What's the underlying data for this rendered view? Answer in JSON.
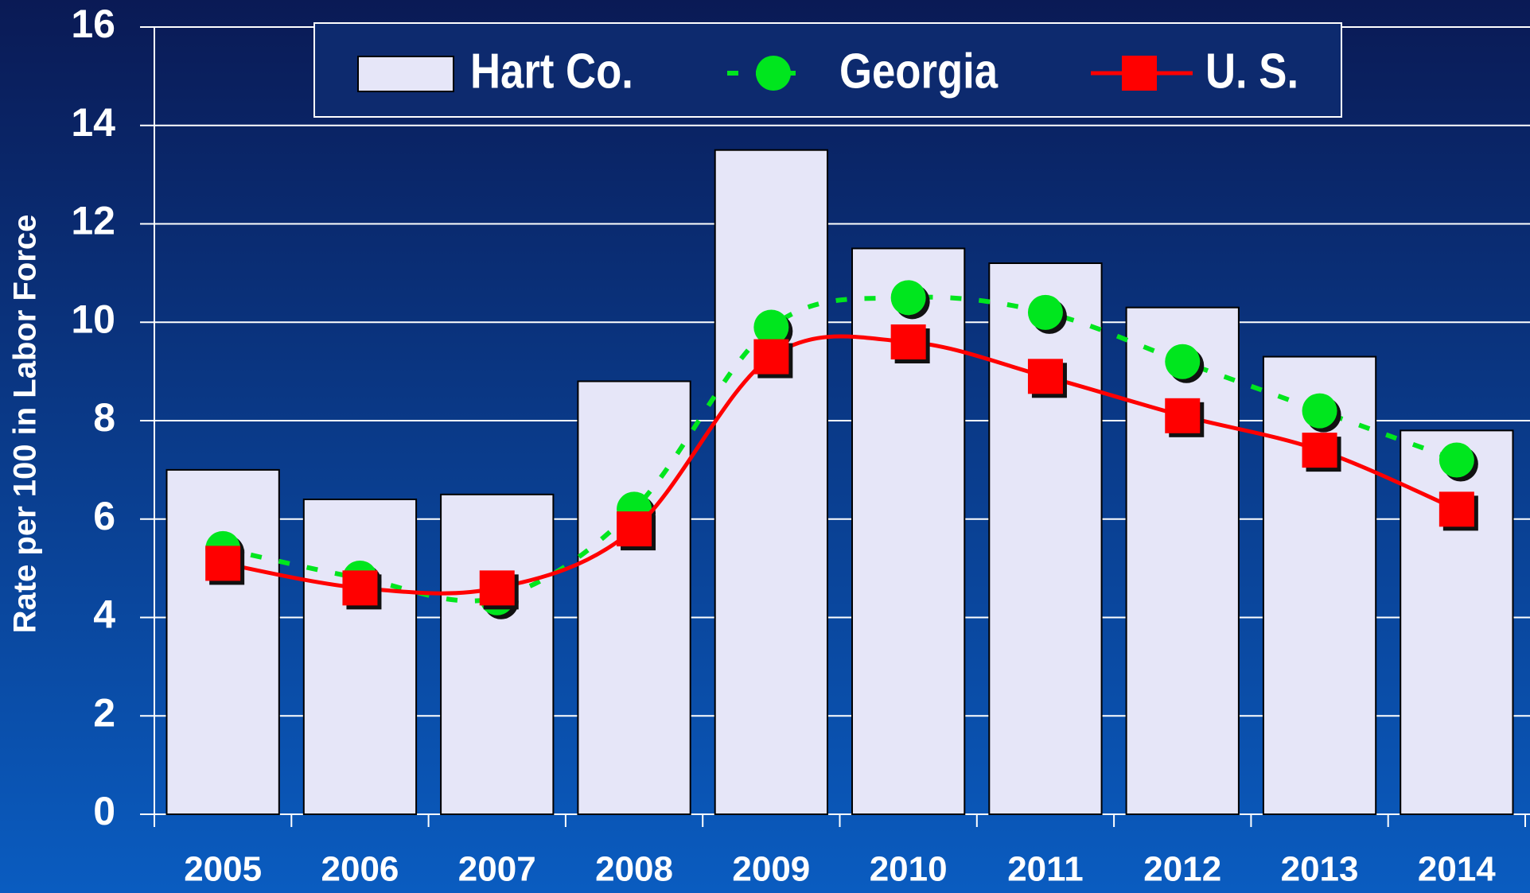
{
  "chart_data": {
    "type": "bar",
    "y_axis_label": "Rate per 100 in Labor Force",
    "categories": [
      "2005",
      "2006",
      "2007",
      "2008",
      "2009",
      "2010",
      "2011",
      "2012",
      "2013",
      "2014"
    ],
    "series": [
      {
        "name": "Hart Co.",
        "type": "bar",
        "color": "#e6e6f8",
        "values": [
          7.0,
          6.4,
          6.5,
          8.8,
          13.5,
          11.5,
          11.2,
          10.3,
          9.3,
          7.8
        ]
      },
      {
        "name": "Georgia",
        "type": "line",
        "color": "#00e61e",
        "values": [
          5.4,
          4.8,
          4.4,
          6.2,
          9.9,
          10.5,
          10.2,
          9.2,
          8.2,
          7.2
        ]
      },
      {
        "name": "U. S.",
        "type": "line",
        "color": "#ff0000",
        "values": [
          5.1,
          4.6,
          4.6,
          5.8,
          9.3,
          9.6,
          8.9,
          8.1,
          7.4,
          6.2
        ]
      }
    ],
    "ylim": [
      0,
      16
    ],
    "yticks": [
      0,
      2,
      4,
      6,
      8,
      10,
      12,
      14,
      16
    ],
    "grid": true,
    "legend": "top"
  }
}
